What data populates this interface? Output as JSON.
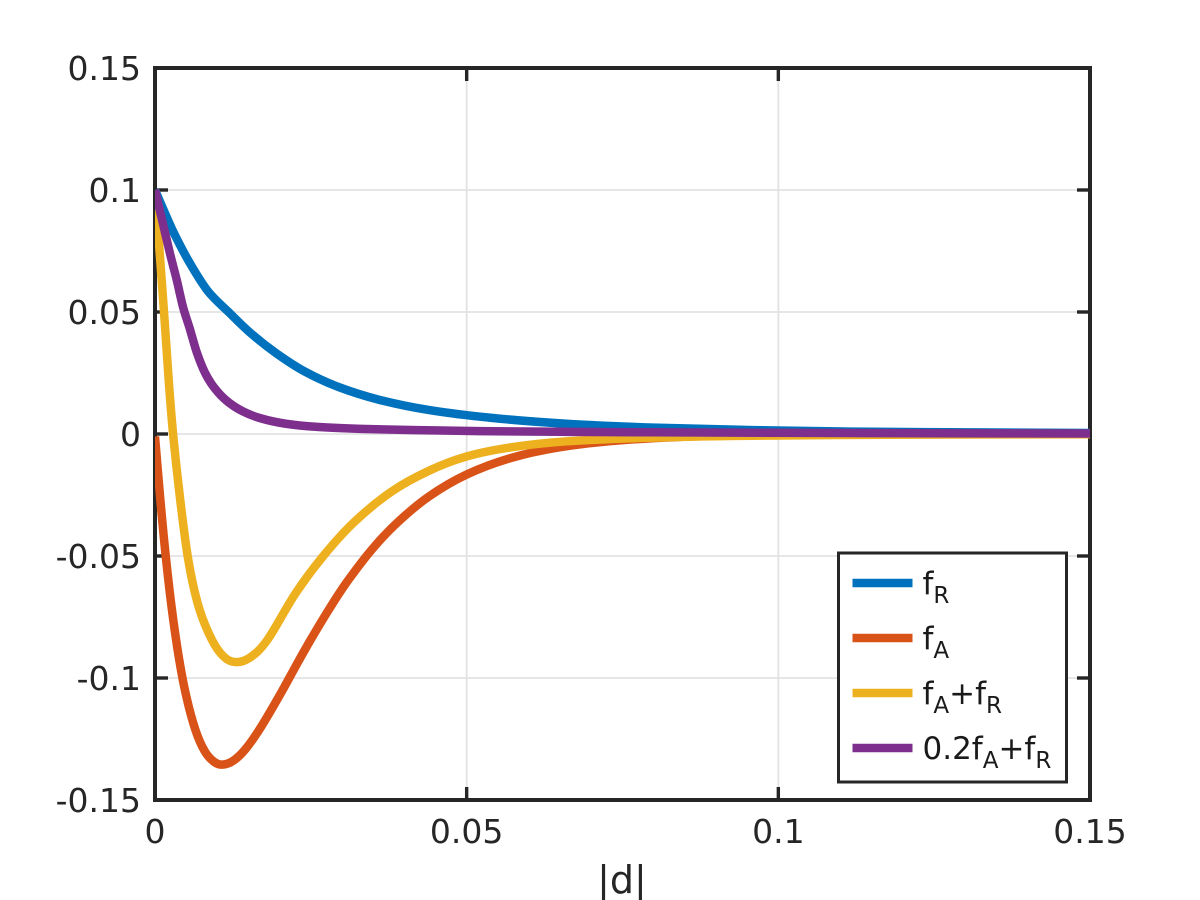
{
  "figure": {
    "background": "#ffffff",
    "frame_color": "#262626",
    "grid_color": "#e2e2e2",
    "text_color": "#262626"
  },
  "axes": {
    "x": {
      "label": "|d|",
      "range": [
        0,
        0.15
      ],
      "ticks": [
        0,
        0.05,
        0.1,
        0.15
      ],
      "tick_labels": [
        "0",
        "0.05",
        "0.1",
        "0.15"
      ]
    },
    "y": {
      "label": "",
      "range": [
        -0.15,
        0.15
      ],
      "ticks": [
        -0.15,
        -0.1,
        -0.05,
        0,
        0.05,
        0.1,
        0.15
      ],
      "tick_labels": [
        "-0.15",
        "-0.1",
        "-0.05",
        "0",
        "0.05",
        "0.1",
        "0.15"
      ]
    },
    "grid": true,
    "box": true,
    "tick_direction": "in"
  },
  "chart_data": {
    "type": "line",
    "title": "",
    "xlabel": "|d|",
    "ylabel": "",
    "xlim": [
      0,
      0.15
    ],
    "ylim": [
      -0.15,
      0.15
    ],
    "grid": true,
    "legend_position": "southeast",
    "series": [
      {
        "name": "f_R",
        "label_parts": [
          [
            "f",
            false
          ],
          [
            "R",
            true
          ]
        ],
        "color": "#0072BD",
        "line_width": 8.5,
        "points": [
          [
            0,
            0.1
          ],
          [
            0.0016,
            0.0905
          ],
          [
            0.0032,
            0.0815
          ],
          [
            0.0056,
            0.07
          ],
          [
            0.0085,
            0.0585
          ],
          [
            0.0118,
            0.05
          ],
          [
            0.0155,
            0.041
          ],
          [
            0.0195,
            0.033
          ],
          [
            0.0241,
            0.0255
          ],
          [
            0.0295,
            0.0192
          ],
          [
            0.036,
            0.014
          ],
          [
            0.044,
            0.0098
          ],
          [
            0.054,
            0.0066
          ],
          [
            0.066,
            0.0042
          ],
          [
            0.08,
            0.0026
          ],
          [
            0.096,
            0.0016
          ],
          [
            0.115,
            0.0009
          ],
          [
            0.135,
            0.0006
          ],
          [
            0.15,
            0.0004
          ]
        ]
      },
      {
        "name": "f_A",
        "label_parts": [
          [
            "f",
            false
          ],
          [
            "A",
            true
          ]
        ],
        "color": "#D95319",
        "line_width": 8.5,
        "points": [
          [
            0,
            -0.001
          ],
          [
            0.0008,
            -0.0253
          ],
          [
            0.0016,
            -0.047
          ],
          [
            0.0026,
            -0.0697
          ],
          [
            0.0038,
            -0.0912
          ],
          [
            0.005,
            -0.1073
          ],
          [
            0.0065,
            -0.1214
          ],
          [
            0.008,
            -0.1301
          ],
          [
            0.0095,
            -0.1344
          ],
          [
            0.0108,
            -0.1355
          ],
          [
            0.0125,
            -0.134
          ],
          [
            0.0145,
            -0.1292
          ],
          [
            0.017,
            -0.1201
          ],
          [
            0.02,
            -0.1071
          ],
          [
            0.0225,
            -0.0955
          ],
          [
            0.025,
            -0.0842
          ],
          [
            0.028,
            -0.0715
          ],
          [
            0.031,
            -0.0599
          ],
          [
            0.035,
            -0.0467
          ],
          [
            0.039,
            -0.036
          ],
          [
            0.044,
            -0.0255
          ],
          [
            0.05,
            -0.0166
          ],
          [
            0.057,
            -0.0099
          ],
          [
            0.065,
            -0.0054
          ],
          [
            0.075,
            -0.0025
          ],
          [
            0.09,
            -0.0007
          ],
          [
            0.11,
            -0.0002
          ],
          [
            0.13,
            -0.0001
          ],
          [
            0.15,
            0
          ]
        ]
      },
      {
        "name": "f_A+f_R",
        "label_parts": [
          [
            "f",
            false
          ],
          [
            "A",
            true
          ],
          [
            "+f",
            false
          ],
          [
            "R",
            true
          ]
        ],
        "color": "#EDB120",
        "line_width": 8.5,
        "points": [
          [
            0,
            0.1
          ],
          [
            0.0007,
            0.076
          ],
          [
            0.0015,
            0.048
          ],
          [
            0.0022,
            0.022
          ],
          [
            0.0029,
            0
          ],
          [
            0.004,
            -0.026
          ],
          [
            0.0053,
            -0.051
          ],
          [
            0.0068,
            -0.069
          ],
          [
            0.0085,
            -0.081
          ],
          [
            0.0104,
            -0.0895
          ],
          [
            0.0124,
            -0.0933
          ],
          [
            0.015,
            -0.092
          ],
          [
            0.018,
            -0.0845
          ],
          [
            0.0225,
            -0.0655
          ],
          [
            0.027,
            -0.05
          ],
          [
            0.032,
            -0.036
          ],
          [
            0.038,
            -0.0235
          ],
          [
            0.044,
            -0.015
          ],
          [
            0.05,
            -0.0092
          ],
          [
            0.057,
            -0.0055
          ],
          [
            0.066,
            -0.003
          ],
          [
            0.078,
            -0.0016
          ],
          [
            0.092,
            -0.0008
          ],
          [
            0.11,
            -0.0004
          ],
          [
            0.13,
            -0.0002
          ],
          [
            0.15,
            -0.0001
          ]
        ]
      },
      {
        "name": "0.2f_A+f_R",
        "label_parts": [
          [
            "0.2f",
            false
          ],
          [
            "A",
            true
          ],
          [
            "+f",
            false
          ],
          [
            "R",
            true
          ]
        ],
        "color": "#7E2F8E",
        "line_width": 8.5,
        "points": [
          [
            0,
            0.1
          ],
          [
            0.0012,
            0.087
          ],
          [
            0.0024,
            0.074
          ],
          [
            0.0035,
            0.063
          ],
          [
            0.0045,
            0.052
          ],
          [
            0.0056,
            0.043
          ],
          [
            0.0067,
            0.0335
          ],
          [
            0.008,
            0.0252
          ],
          [
            0.0095,
            0.019
          ],
          [
            0.0115,
            0.0136
          ],
          [
            0.014,
            0.0094
          ],
          [
            0.017,
            0.0064
          ],
          [
            0.021,
            0.0042
          ],
          [
            0.026,
            0.0029
          ],
          [
            0.033,
            0.0021
          ],
          [
            0.042,
            0.0016
          ],
          [
            0.052,
            0.0012
          ],
          [
            0.065,
            0.0009
          ],
          [
            0.08,
            0.0007
          ],
          [
            0.1,
            0.0005
          ],
          [
            0.125,
            0.0003
          ],
          [
            0.15,
            0.0002
          ]
        ]
      }
    ]
  },
  "legend": {
    "border_color": "#262626",
    "background": "#ffffff",
    "entries": [
      "f_R",
      "f_A",
      "f_A+f_R",
      "0.2f_A+f_R"
    ]
  }
}
